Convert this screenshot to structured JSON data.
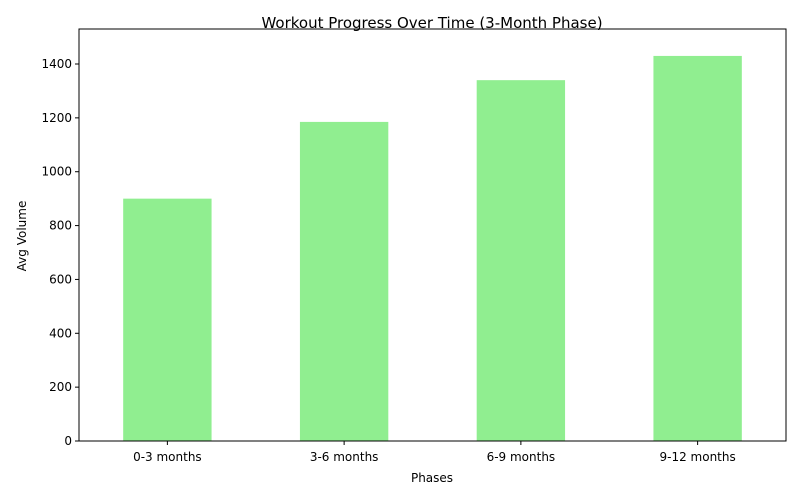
{
  "chart_data": {
    "type": "bar",
    "title": "Workout Progress Over Time (3-Month Phase)",
    "xlabel": "Phases",
    "ylabel": "Avg Volume",
    "categories": [
      "0-3 months",
      "3-6 months",
      "6-9 months",
      "9-12 months"
    ],
    "values": [
      900,
      1185,
      1340,
      1430
    ],
    "ylim": [
      0,
      1530
    ],
    "yticks": [
      0,
      200,
      400,
      600,
      800,
      1000,
      1200,
      1400
    ],
    "bar_color": "#90EE90",
    "grid": false,
    "legend": "none"
  }
}
